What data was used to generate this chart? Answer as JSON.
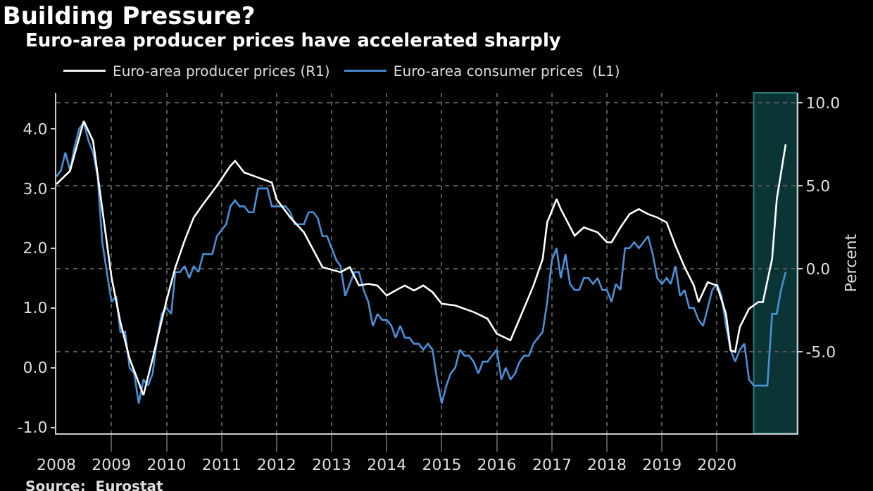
{
  "chart_data": {
    "type": "line",
    "title": "Building Pressure?",
    "subtitle": "Euro-area producer prices have accelerated sharply",
    "annotations": [
      "Source:  Eurostat"
    ],
    "series": [
      {
        "name": "Euro-area producer prices (R1)",
        "color": "#ffffff",
        "axis": "y2",
        "x": [
          "2008-01",
          "2008-04",
          "2008-07",
          "2008-09",
          "2008-11",
          "2009-01",
          "2009-03",
          "2009-05",
          "2009-08",
          "2009-10",
          "2010-01",
          "2010-03",
          "2010-05",
          "2010-07",
          "2010-09",
          "2010-12",
          "2011-03",
          "2011-04",
          "2011-06",
          "2011-09",
          "2011-12",
          "2012-01",
          "2012-04",
          "2012-07",
          "2012-11",
          "2013-03",
          "2013-05",
          "2013-07",
          "2013-09",
          "2013-11",
          "2014-01",
          "2014-03",
          "2014-05",
          "2014-07",
          "2014-09",
          "2014-11",
          "2015-01",
          "2015-04",
          "2015-08",
          "2015-11",
          "2016-01",
          "2016-04",
          "2016-06",
          "2016-09",
          "2016-11",
          "2016-12",
          "2017-02",
          "2017-03",
          "2017-06",
          "2017-08",
          "2017-11",
          "2018-01",
          "2018-02",
          "2018-04",
          "2018-06",
          "2018-08",
          "2018-10",
          "2018-12",
          "2019-02",
          "2019-04",
          "2019-06",
          "2019-08",
          "2019-09",
          "2019-11",
          "2020-01",
          "2020-03",
          "2020-04",
          "2020-05",
          "2020-06",
          "2020-08",
          "2020-10",
          "2020-11",
          "2021-01",
          "2021-02",
          "2021-04"
        ],
        "values": [
          5.1,
          5.9,
          8.9,
          7.7,
          3.6,
          -0.5,
          -3.2,
          -5.4,
          -7.6,
          -5.4,
          -1.9,
          0.1,
          1.7,
          3.1,
          3.9,
          5.0,
          6.2,
          6.5,
          5.8,
          5.5,
          5.2,
          4.2,
          3.1,
          2.2,
          0.1,
          -0.2,
          0.1,
          -1.0,
          -0.9,
          -1.0,
          -1.6,
          -1.3,
          -1.0,
          -1.3,
          -1.0,
          -1.4,
          -2.1,
          -2.2,
          -2.6,
          -3.0,
          -3.9,
          -4.3,
          -3.0,
          -1.0,
          0.6,
          2.8,
          4.2,
          3.6,
          2.0,
          2.5,
          2.2,
          1.6,
          1.6,
          2.5,
          3.3,
          3.6,
          3.3,
          3.1,
          2.8,
          1.4,
          0.1,
          -1.0,
          -2.0,
          -0.8,
          -1.0,
          -2.7,
          -4.9,
          -5.0,
          -3.5,
          -2.4,
          -2.0,
          -2.0,
          0.6,
          4.2,
          7.5
        ]
      },
      {
        "name": "Euro-area consumer prices  (L1)",
        "color": "#4a90d9",
        "x": [
          "2008-01",
          "2008-02",
          "2008-03",
          "2008-04",
          "2008-05",
          "2008-06",
          "2008-07",
          "2008-08",
          "2008-09",
          "2008-10",
          "2008-11",
          "2008-12",
          "2009-01",
          "2009-02",
          "2009-03",
          "2009-04",
          "2009-05",
          "2009-06",
          "2009-07",
          "2009-08",
          "2009-09",
          "2009-10",
          "2009-11",
          "2009-12",
          "2010-01",
          "2010-02",
          "2010-03",
          "2010-04",
          "2010-05",
          "2010-06",
          "2010-07",
          "2010-08",
          "2010-09",
          "2010-10",
          "2010-11",
          "2010-12",
          "2011-01",
          "2011-02",
          "2011-03",
          "2011-04",
          "2011-05",
          "2011-06",
          "2011-07",
          "2011-08",
          "2011-09",
          "2011-10",
          "2011-11",
          "2011-12",
          "2012-01",
          "2012-02",
          "2012-03",
          "2012-04",
          "2012-05",
          "2012-06",
          "2012-07",
          "2012-08",
          "2012-09",
          "2012-10",
          "2012-11",
          "2012-12",
          "2013-01",
          "2013-02",
          "2013-03",
          "2013-04",
          "2013-05",
          "2013-06",
          "2013-07",
          "2013-08",
          "2013-09",
          "2013-10",
          "2013-11",
          "2013-12",
          "2014-01",
          "2014-02",
          "2014-03",
          "2014-04",
          "2014-05",
          "2014-06",
          "2014-07",
          "2014-08",
          "2014-09",
          "2014-10",
          "2014-11",
          "2014-12",
          "2015-01",
          "2015-02",
          "2015-03",
          "2015-04",
          "2015-05",
          "2015-06",
          "2015-07",
          "2015-08",
          "2015-09",
          "2015-10",
          "2015-11",
          "2015-12",
          "2016-01",
          "2016-02",
          "2016-03",
          "2016-04",
          "2016-05",
          "2016-06",
          "2016-07",
          "2016-08",
          "2016-09",
          "2016-10",
          "2016-11",
          "2016-12",
          "2017-01",
          "2017-02",
          "2017-03",
          "2017-04",
          "2017-05",
          "2017-06",
          "2017-07",
          "2017-08",
          "2017-09",
          "2017-10",
          "2017-11",
          "2017-12",
          "2018-01",
          "2018-02",
          "2018-03",
          "2018-04",
          "2018-05",
          "2018-06",
          "2018-07",
          "2018-08",
          "2018-09",
          "2018-10",
          "2018-11",
          "2018-12",
          "2019-01",
          "2019-02",
          "2019-03",
          "2019-04",
          "2019-05",
          "2019-06",
          "2019-07",
          "2019-08",
          "2019-09",
          "2019-10",
          "2019-11",
          "2019-12",
          "2020-01",
          "2020-02",
          "2020-03",
          "2020-04",
          "2020-05",
          "2020-06",
          "2020-07",
          "2020-08",
          "2020-09",
          "2020-10",
          "2020-11",
          "2020-12",
          "2021-01",
          "2021-02",
          "2021-03",
          "2021-04"
        ],
        "values": [
          3.2,
          3.3,
          3.6,
          3.3,
          3.7,
          4.0,
          4.1,
          3.8,
          3.6,
          3.2,
          2.1,
          1.6,
          1.1,
          1.2,
          0.6,
          0.6,
          0.0,
          -0.1,
          -0.6,
          -0.2,
          -0.3,
          -0.1,
          0.5,
          0.9,
          1.0,
          0.9,
          1.6,
          1.6,
          1.7,
          1.5,
          1.7,
          1.6,
          1.9,
          1.9,
          1.9,
          2.2,
          2.3,
          2.4,
          2.7,
          2.8,
          2.7,
          2.7,
          2.6,
          2.6,
          3.0,
          3.0,
          3.0,
          2.7,
          2.7,
          2.7,
          2.7,
          2.6,
          2.4,
          2.4,
          2.4,
          2.6,
          2.6,
          2.5,
          2.2,
          2.2,
          2.0,
          1.8,
          1.7,
          1.2,
          1.4,
          1.6,
          1.6,
          1.3,
          1.1,
          0.7,
          0.9,
          0.8,
          0.8,
          0.7,
          0.5,
          0.7,
          0.5,
          0.5,
          0.4,
          0.4,
          0.3,
          0.4,
          0.3,
          -0.2,
          -0.6,
          -0.3,
          -0.1,
          0.0,
          0.3,
          0.2,
          0.2,
          0.1,
          -0.1,
          0.1,
          0.1,
          0.2,
          0.3,
          -0.2,
          0.0,
          -0.2,
          -0.1,
          0.1,
          0.2,
          0.2,
          0.4,
          0.5,
          0.6,
          1.1,
          1.8,
          2.0,
          1.5,
          1.9,
          1.4,
          1.3,
          1.3,
          1.5,
          1.5,
          1.4,
          1.5,
          1.3,
          1.3,
          1.1,
          1.4,
          1.3,
          2.0,
          2.0,
          2.1,
          2.0,
          2.1,
          2.2,
          1.9,
          1.5,
          1.4,
          1.5,
          1.4,
          1.7,
          1.2,
          1.3,
          1.0,
          1.0,
          0.8,
          0.7,
          1.0,
          1.3,
          1.4,
          1.2,
          0.7,
          0.3,
          0.1,
          0.3,
          0.4,
          -0.2,
          -0.3,
          -0.3,
          -0.3,
          -0.3,
          0.9,
          0.9,
          1.3,
          1.6
        ]
      }
    ],
    "xlim": [
      "2008-01",
      "2021-06-15"
    ],
    "xticks": [
      {
        "value": "2008-01-01",
        "label": "2008"
      },
      {
        "value": "2009-01-01",
        "label": "2009"
      },
      {
        "value": "2010-01-01",
        "label": "2010"
      },
      {
        "value": "2011-01-01",
        "label": "2011"
      },
      {
        "value": "2012-01-01",
        "label": "2012"
      },
      {
        "value": "2013-01-01",
        "label": "2013"
      },
      {
        "value": "2014-01-01",
        "label": "2014"
      },
      {
        "value": "2015-01-01",
        "label": "2015"
      },
      {
        "value": "2016-01-01",
        "label": "2016"
      },
      {
        "value": "2017-01-01",
        "label": "2017"
      },
      {
        "value": "2018-01-01",
        "label": "2018"
      },
      {
        "value": "2019-01-01",
        "label": "2019"
      },
      {
        "value": "2020-01-01",
        "label": "2020"
      }
    ],
    "ylim": [
      -1.1,
      4.6
    ],
    "yticks": [
      {
        "value": -1,
        "label": "-1.0"
      },
      {
        "value": 0,
        "label": "0.0"
      },
      {
        "value": 1,
        "label": "1.0"
      },
      {
        "value": 2,
        "label": "2.0"
      },
      {
        "value": 3,
        "label": "3.0"
      },
      {
        "value": 4,
        "label": "4.0"
      }
    ],
    "y2label": "Percent",
    "y2lim": [
      -9.9,
      10.6
    ],
    "y2ticks": [
      {
        "value": -5,
        "label": "-5.0"
      },
      {
        "value": 0,
        "label": "0.0"
      },
      {
        "value": 5,
        "label": "5.0"
      },
      {
        "value": 10,
        "label": "10.0"
      }
    ],
    "bands": [
      {
        "axis": "x",
        "from": "2020-09",
        "to": "2021-06-15",
        "color": "#0b3535"
      }
    ],
    "grid": true,
    "legend": "top left",
    "line_style": "solid",
    "marker": "none"
  }
}
